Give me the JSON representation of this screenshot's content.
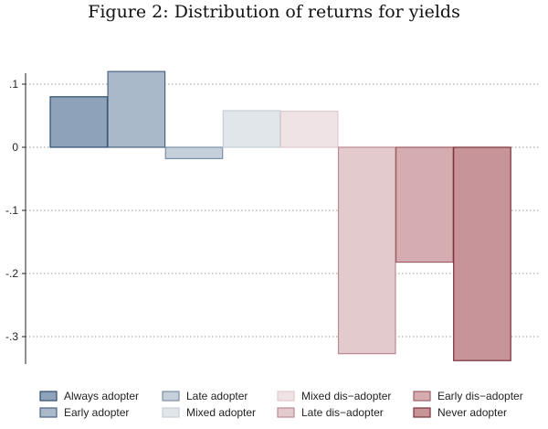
{
  "chart_data": {
    "type": "bar",
    "title": "Figure 2: Distribution of returns for yields",
    "xlabel": "",
    "ylabel": "",
    "ylim": [
      -0.34,
      0.12
    ],
    "yticks": [
      {
        "value": 0.1,
        "label": ".1"
      },
      {
        "value": 0,
        "label": "0"
      },
      {
        "value": -0.1,
        "label": "-.1"
      },
      {
        "value": -0.2,
        "label": "-.2"
      },
      {
        "value": -0.3,
        "label": "-.3"
      }
    ],
    "grid": true,
    "legend_position": "bottom",
    "series": [
      {
        "name": "Always adopter",
        "value": 0.08,
        "fill": "#8ea3ba",
        "stroke": "#2d4b6d"
      },
      {
        "name": "Early adopter",
        "value": 0.12,
        "fill": "#a9b9c9",
        "stroke": "#4a6582"
      },
      {
        "name": "Late adopter",
        "value": -0.018,
        "fill": "#c5d0db",
        "stroke": "#7d90a5"
      },
      {
        "name": "Mixed adopter",
        "value": 0.058,
        "fill": "#e1e6eb",
        "stroke": "#c6cfd8"
      },
      {
        "name": "Mixed dis-adopter",
        "value": 0.057,
        "fill": "#f0e3e5",
        "stroke": "#e2c9cc"
      },
      {
        "name": "Late dis-adopter",
        "value": -0.327,
        "fill": "#e3cbcd",
        "stroke": "#b98a90"
      },
      {
        "name": "Early dis-adopter",
        "value": -0.182,
        "fill": "#d5adb1",
        "stroke": "#9c5e65"
      },
      {
        "name": "Never adopter",
        "value": -0.338,
        "fill": "#c79599",
        "stroke": "#7a2f37"
      }
    ],
    "legend_labels": [
      "Always adopter",
      "Early adopter",
      "Late adopter",
      "Mixed adopter",
      "Mixed dis−adopter",
      "Late dis−adopter",
      "Early dis−adopter",
      "Never adopter"
    ]
  }
}
